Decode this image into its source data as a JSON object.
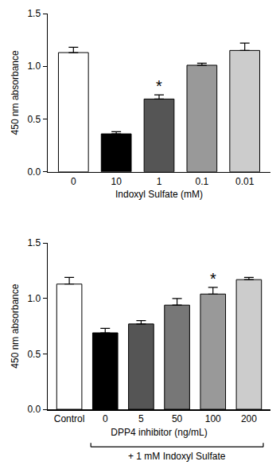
{
  "chart_data": [
    {
      "type": "bar",
      "x_label": "Indoxyl Sulfate (mM)",
      "y_label": "450 nm absorbance",
      "categories": [
        "0",
        "10",
        "1",
        "0.1",
        "0.01"
      ],
      "values": [
        1.13,
        0.36,
        0.69,
        1.01,
        1.15
      ],
      "errors": [
        0.05,
        0.02,
        0.04,
        0.02,
        0.07
      ],
      "colors": [
        "#ffffff",
        "#000000",
        "#555555",
        "#999999",
        "#cccccc"
      ],
      "ylim": [
        0,
        1.5
      ],
      "yticks": [
        {
          "value": 0,
          "label": "0.0"
        },
        0.5,
        {
          "value": 1,
          "label": "1.0"
        },
        1.5
      ],
      "grid": false,
      "annotations": [
        {
          "text": "*",
          "category": "1"
        }
      ]
    },
    {
      "type": "bar",
      "x_label": "DPP4 inhibitor (ng/mL)",
      "y_label": "450 nm absorbance",
      "categories": [
        "Control",
        "0",
        "5",
        "50",
        "100",
        "200"
      ],
      "values": [
        1.13,
        0.69,
        0.77,
        0.94,
        1.04,
        1.17
      ],
      "errors": [
        0.06,
        0.04,
        0.03,
        0.06,
        0.06,
        0.02
      ],
      "colors": [
        "#ffffff",
        "#000000",
        "#555555",
        "#777777",
        "#999999",
        "#cccccc"
      ],
      "ylim": [
        0,
        1.5
      ],
      "yticks": [
        {
          "value": 0,
          "label": "0.0"
        },
        0.5,
        {
          "value": 1,
          "label": "1.0"
        },
        1.5
      ],
      "grid": false,
      "annotations": [
        {
          "text": "*",
          "category": "100"
        },
        {
          "text": "+ 1 mM Indoxyl Sulfate",
          "from": "0",
          "to": "200"
        }
      ]
    }
  ]
}
